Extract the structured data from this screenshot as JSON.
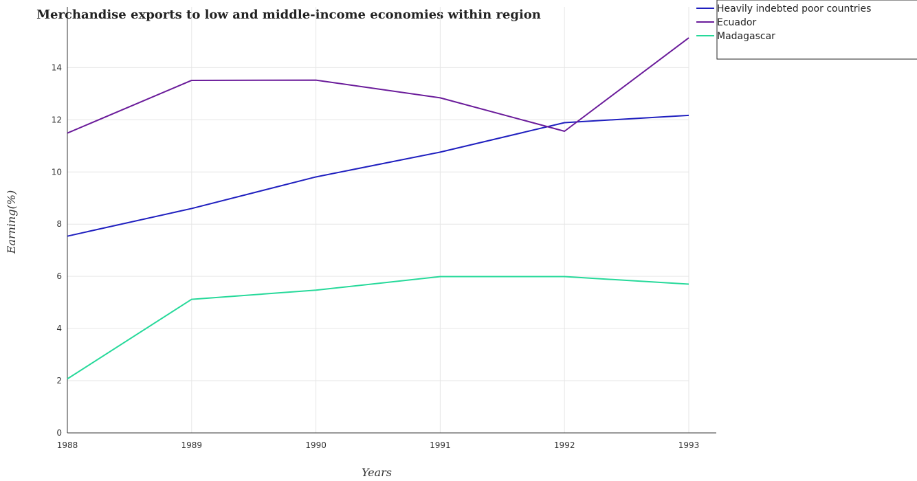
{
  "chart_data": {
    "type": "line",
    "title": "Merchandise exports to low and middle-income economies within region",
    "xlabel": "Years",
    "ylabel": "Earning(%)",
    "x": [
      "1988",
      "1989",
      "1990",
      "1991",
      "1992",
      "1993"
    ],
    "ylim": [
      0,
      16
    ],
    "yticks": [
      "0",
      "2",
      "4",
      "6",
      "8",
      "10",
      "12",
      "14"
    ],
    "grid": true,
    "legend_position": "top-right",
    "series": [
      {
        "name": "Heavily indebted poor countries",
        "color": "#1f1fbf",
        "values": [
          7.54,
          8.6,
          9.81,
          10.76,
          11.89,
          12.17
        ]
      },
      {
        "name": "Ecuador",
        "color": "#6a1b9a",
        "values": [
          11.49,
          13.51,
          13.52,
          12.84,
          11.56,
          15.14
        ]
      },
      {
        "name": "Madagascar",
        "color": "#26d99a",
        "values": [
          2.07,
          5.12,
          5.47,
          5.99,
          5.99,
          5.7
        ]
      }
    ]
  }
}
